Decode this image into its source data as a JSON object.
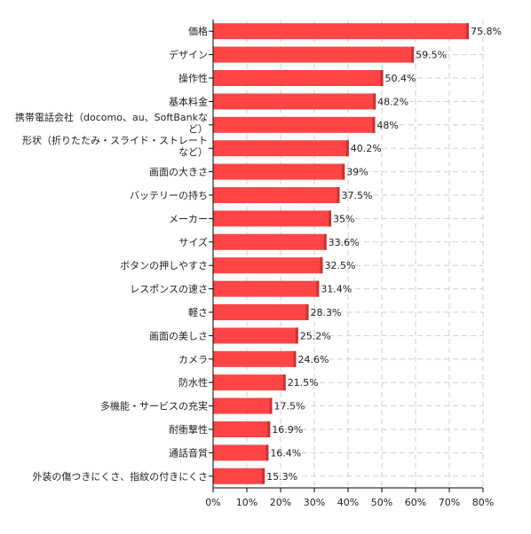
{
  "chart_data": {
    "type": "bar",
    "orientation": "horizontal",
    "title": "",
    "xlabel": "",
    "ylabel": "",
    "xlim": [
      0,
      80
    ],
    "x_ticks": [
      "0%",
      "10%",
      "20%",
      "30%",
      "40%",
      "50%",
      "60%",
      "70%",
      "80%"
    ],
    "grid": true,
    "legend": "none",
    "value_suffix": "%",
    "colors": {
      "bar": "#ff4545",
      "bar_edge": "#c83232",
      "grid": "#cfcfcf",
      "axis": "#000000"
    },
    "categories": [
      [
        "価格"
      ],
      [
        "デザイン"
      ],
      [
        "操作性"
      ],
      [
        "基本料金"
      ],
      [
        "携帯電話会社（docomo、au、SoftBankな",
        "ど）"
      ],
      [
        "形状（折りたたみ・スライド・ストレート",
        "など）"
      ],
      [
        "画面の大きさ"
      ],
      [
        "バッテリーの持ち"
      ],
      [
        "メーカー"
      ],
      [
        "サイズ"
      ],
      [
        "ボタンの押しやすさ"
      ],
      [
        "レスポンスの速さ"
      ],
      [
        "軽さ"
      ],
      [
        "画面の美しさ"
      ],
      [
        "カメラ"
      ],
      [
        "防水性"
      ],
      [
        "多機能・サービスの充実"
      ],
      [
        "耐衝撃性"
      ],
      [
        "通話音質"
      ],
      [
        "外装の傷つきにくさ、指紋の付きにくさ"
      ]
    ],
    "values": [
      75.8,
      59.5,
      50.4,
      48.2,
      48,
      40.2,
      39,
      37.5,
      35,
      33.6,
      32.5,
      31.4,
      28.3,
      25.2,
      24.6,
      21.5,
      17.5,
      16.9,
      16.4,
      15.3
    ]
  }
}
